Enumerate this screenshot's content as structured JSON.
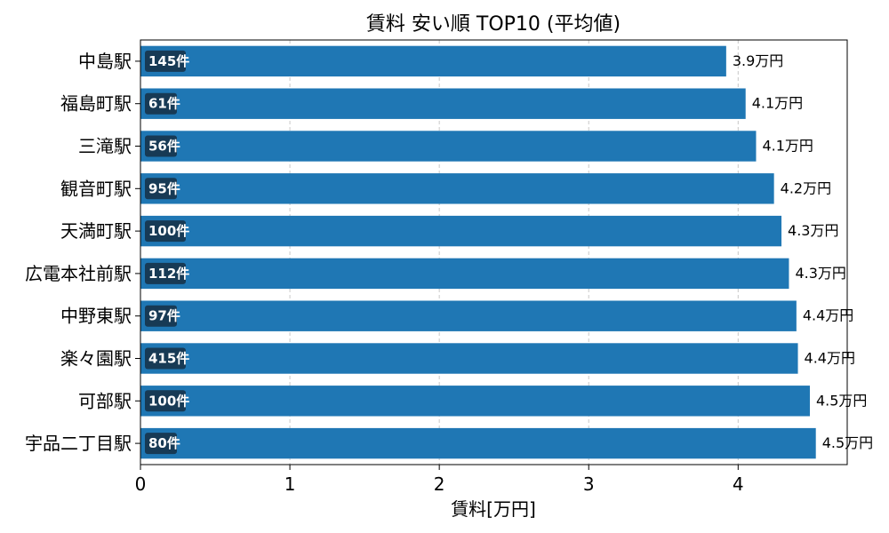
{
  "chart_data": {
    "type": "bar",
    "orientation": "horizontal",
    "title": "賃料 安い順 TOP10 (平均値)",
    "xlabel": "賃料[万円]",
    "ylabel": "",
    "xlim": [
      0,
      4.73
    ],
    "x_ticks": [
      "0",
      "1",
      "2",
      "3",
      "4"
    ],
    "grid": "x-dashed",
    "bar_color": "#1f77b4",
    "badge_color": "#173a55",
    "categories": [
      "中島駅",
      "福島町駅",
      "三滝駅",
      "観音町駅",
      "天満町駅",
      "広電本社前駅",
      "中野東駅",
      "楽々園駅",
      "可部駅",
      "宇品二丁目駅"
    ],
    "values": [
      3.92,
      4.05,
      4.12,
      4.24,
      4.29,
      4.34,
      4.39,
      4.4,
      4.48,
      4.52
    ],
    "value_labels": [
      "3.9万円",
      "4.1万円",
      "4.1万円",
      "4.2万円",
      "4.3万円",
      "4.3万円",
      "4.4万円",
      "4.4万円",
      "4.5万円",
      "4.5万円"
    ],
    "counts": [
      "145件",
      "61件",
      "56件",
      "95件",
      "100件",
      "112件",
      "97件",
      "415件",
      "100件",
      "80件"
    ]
  }
}
